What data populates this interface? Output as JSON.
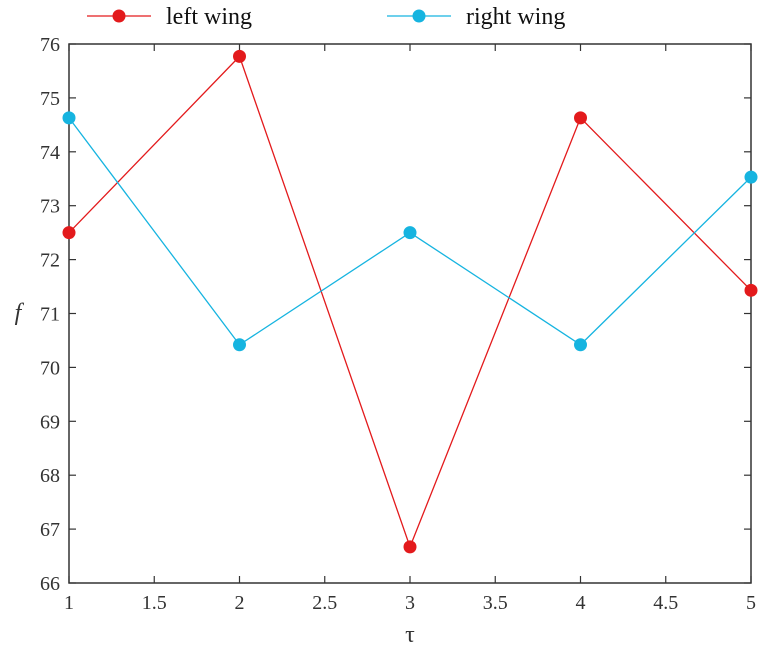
{
  "chart_data": {
    "type": "line",
    "x": [
      1,
      2,
      3,
      4,
      5
    ],
    "series": [
      {
        "name": "left wing",
        "color": "#e31a1c",
        "values": [
          72.5,
          75.77,
          66.67,
          74.63,
          71.43
        ]
      },
      {
        "name": "right wing",
        "color": "#16b4e0",
        "values": [
          74.63,
          70.42,
          72.5,
          70.42,
          73.53
        ]
      }
    ],
    "xlabel": "τ",
    "ylabel": "f",
    "xlim": [
      1,
      5
    ],
    "ylim": [
      66,
      76
    ],
    "xticks": [
      "1",
      "1.5",
      "2",
      "2.5",
      "3",
      "3.5",
      "4",
      "4.5",
      "5"
    ],
    "yticks": [
      "66",
      "67",
      "68",
      "69",
      "70",
      "71",
      "72",
      "73",
      "74",
      "75",
      "76"
    ],
    "grid": false,
    "legend_position": "top, horizontal, outside plot"
  }
}
